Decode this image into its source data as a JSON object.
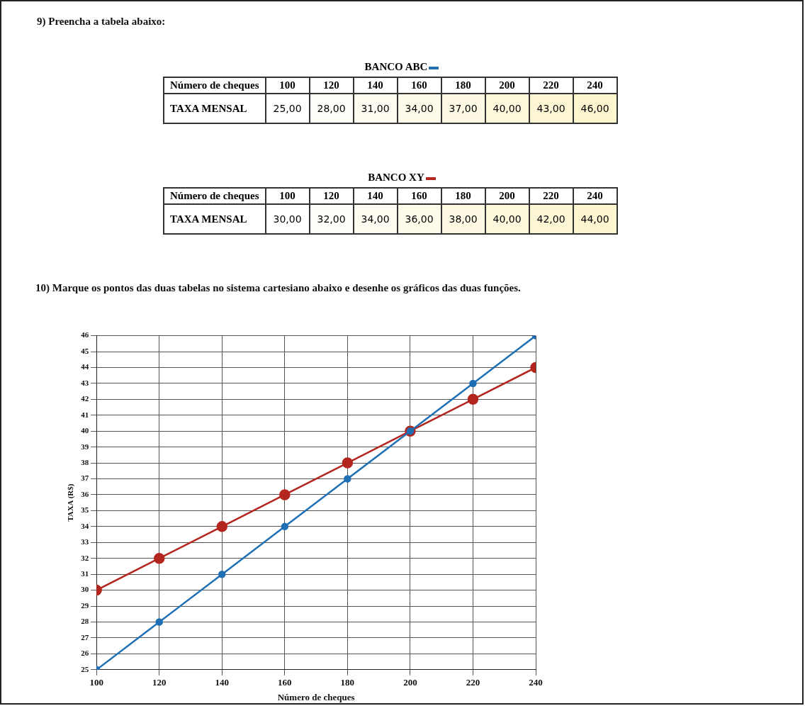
{
  "chart_data": [
    {
      "type": "heatmap",
      "title": "9) Preencha a tabela abaixo:",
      "xlabel": "Número de cheques",
      "categories": [
        "100",
        "120",
        "140",
        "160",
        "180",
        "200",
        "220",
        "240"
      ],
      "y_categories": [
        "TAXA MENSAL"
      ],
      "cells": [
        [
          25,
          28,
          31,
          34,
          37,
          40,
          43,
          46
        ]
      ],
      "cell_labels": [
        [
          "25,00",
          "28,00",
          "31,00",
          "34,00",
          "37,00",
          "40,00",
          "43,00",
          "46,00"
        ]
      ]
    },
    {
      "type": "heatmap",
      "xlabel": "Número de cheques",
      "categories": [
        "100",
        "120",
        "140",
        "160",
        "180",
        "200",
        "220",
        "240"
      ],
      "y_categories": [
        "TAXA MENSAL"
      ],
      "cells": [
        [
          30,
          32,
          34,
          36,
          38,
          40,
          42,
          44
        ]
      ],
      "cell_labels": [
        [
          "30,00",
          "32,00",
          "34,00",
          "36,00",
          "38,00",
          "40,00",
          "42,00",
          "44,00"
        ]
      ]
    },
    {
      "type": "line",
      "title": "10) Marque os pontos das duas tabelas no sistema cartesiano abaixo e desenhe os gráficos das duas funções.",
      "xlabel": "Número de cheques",
      "ylabel": "TAXA (R$)",
      "x": [
        100,
        120,
        140,
        160,
        180,
        200,
        220,
        240
      ],
      "series": [
        {
          "name": "BANCO ABC",
          "color": "#1f6fb5",
          "values": [
            25,
            28,
            31,
            34,
            37,
            40,
            43,
            46
          ]
        },
        {
          "name": "BANCO XY",
          "color": "#b3261e",
          "values": [
            30,
            32,
            34,
            36,
            38,
            40,
            42,
            44
          ]
        }
      ],
      "xlim": [
        100,
        240
      ],
      "xticks": [
        100,
        120,
        140,
        160,
        180,
        200,
        220,
        240
      ],
      "ylim": [
        25,
        46
      ],
      "yticks": [
        25,
        26,
        27,
        28,
        29,
        30,
        31,
        32,
        33,
        34,
        35,
        36,
        37,
        38,
        39,
        40,
        41,
        42,
        43,
        44,
        45,
        46
      ],
      "grid": true,
      "marker": "circle",
      "line_style": "solid",
      "legend": "top"
    }
  ]
}
